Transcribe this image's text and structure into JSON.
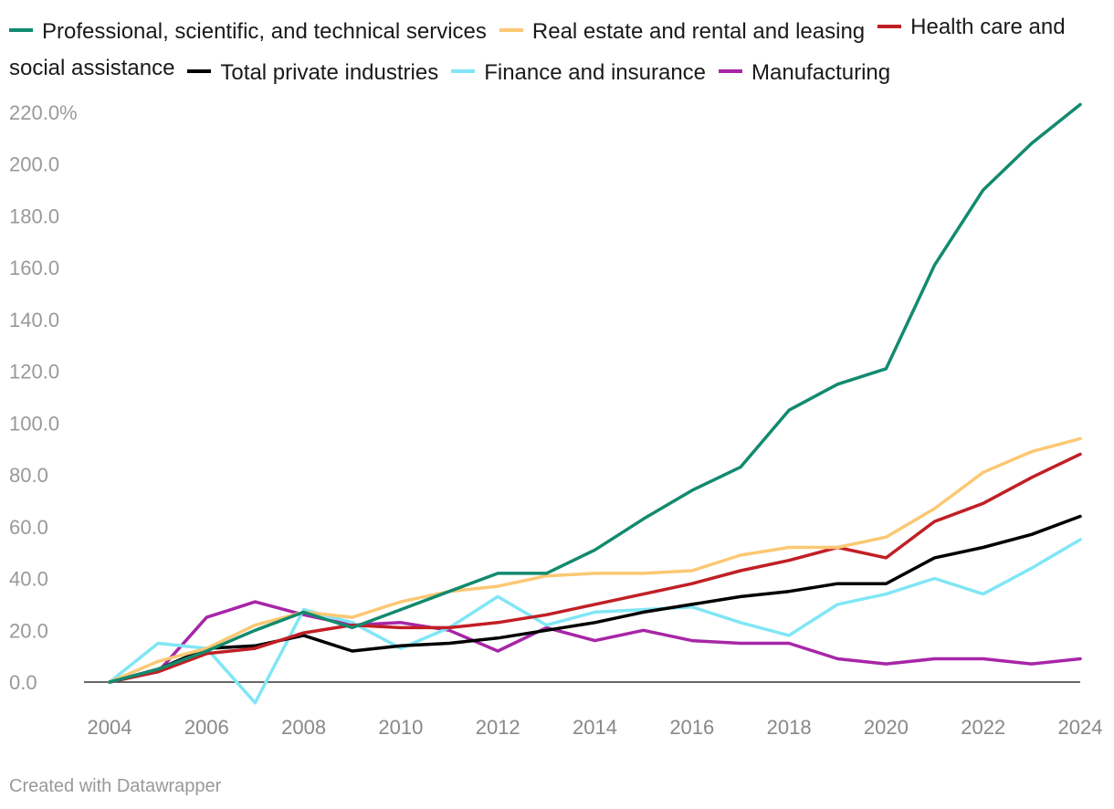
{
  "chart_data": {
    "type": "line",
    "title": "",
    "xlabel": "",
    "ylabel": "",
    "x": [
      2004,
      2005,
      2006,
      2007,
      2008,
      2009,
      2010,
      2011,
      2012,
      2013,
      2014,
      2015,
      2016,
      2017,
      2018,
      2019,
      2020,
      2021,
      2022,
      2023,
      2024
    ],
    "xticks": [
      "2004",
      "2006",
      "2008",
      "2010",
      "2012",
      "2014",
      "2016",
      "2018",
      "2020",
      "2022",
      "2024"
    ],
    "yticks": [
      "220.0%",
      "200.0",
      "180.0",
      "160.0",
      "140.0",
      "120.0",
      "100.0",
      "80.0",
      "60.0",
      "40.0",
      "20.0",
      "0.0"
    ],
    "ylim": [
      -8,
      225
    ],
    "series": [
      {
        "name": "Professional, scientific, and technical services",
        "color": "#128a6e",
        "values": [
          0,
          5,
          12,
          20,
          27,
          21,
          28,
          35,
          42,
          42,
          51,
          63,
          74,
          83,
          105,
          115,
          121,
          161,
          190,
          208,
          223
        ]
      },
      {
        "name": "Real estate and rental and leasing",
        "color": "#fcc873",
        "values": [
          0,
          8,
          13,
          22,
          27,
          25,
          31,
          35,
          37,
          41,
          42,
          42,
          43,
          49,
          52,
          52,
          56,
          67,
          81,
          89,
          94
        ]
      },
      {
        "name": "Health care and social assistance",
        "color": "#c11f25",
        "values": [
          0,
          4,
          11,
          13,
          19,
          22,
          21,
          21,
          23,
          26,
          30,
          34,
          38,
          43,
          47,
          52,
          48,
          62,
          69,
          79,
          88
        ]
      },
      {
        "name": "Total private industries",
        "color": "#000000",
        "values": [
          0,
          5,
          13,
          14,
          18,
          12,
          14,
          15,
          17,
          20,
          23,
          27,
          30,
          33,
          35,
          38,
          38,
          48,
          52,
          57,
          64
        ]
      },
      {
        "name": "Finance and insurance",
        "color": "#80e6f5",
        "values": [
          0,
          15,
          13,
          -8,
          28,
          23,
          13,
          21,
          33,
          22,
          27,
          28,
          29,
          23,
          18,
          30,
          34,
          40,
          34,
          44,
          55
        ]
      },
      {
        "name": "Manufacturing",
        "color": "#a726a7",
        "values": [
          0,
          4,
          25,
          31,
          26,
          22,
          23,
          20,
          12,
          21,
          16,
          20,
          16,
          15,
          15,
          9,
          7,
          9,
          9,
          7,
          9
        ]
      }
    ]
  },
  "credit": "Created with Datawrapper"
}
